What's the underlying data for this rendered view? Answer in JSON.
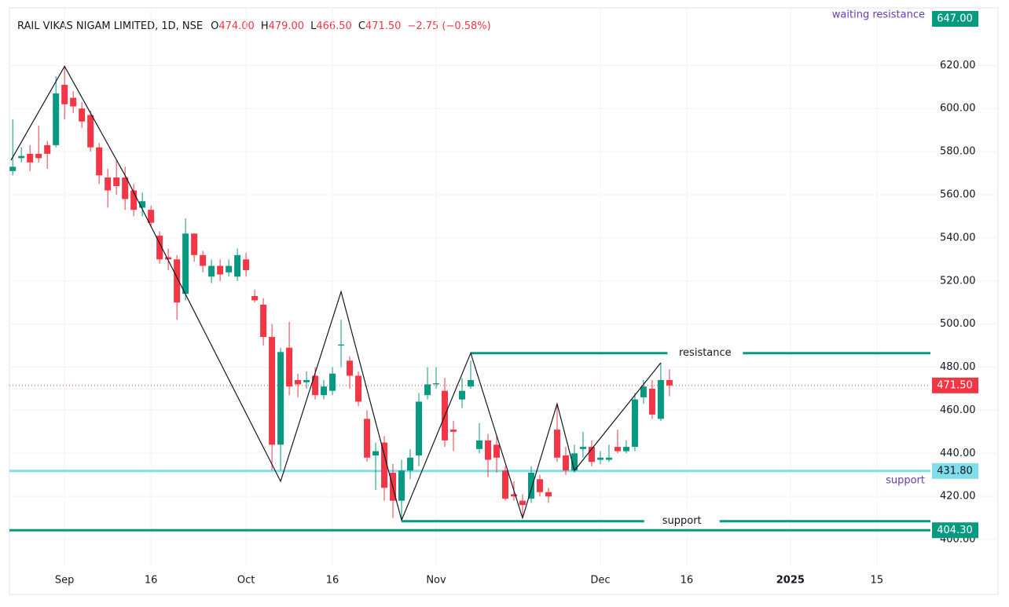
{
  "chart_data": {
    "type": "candlestick",
    "title": "RAIL VIKAS NIGAM LIMITED, 1D, NSE",
    "ohlc_legend": [
      {
        "key": "O",
        "value": "474.00"
      },
      {
        "key": "H",
        "value": "479.00"
      },
      {
        "key": "L",
        "value": "466.50"
      },
      {
        "key": "C",
        "value": "471.50"
      }
    ],
    "change": "−2.75 (−0.58%)",
    "up_color": "#089981",
    "down_color": "#f23645",
    "open": [
      571,
      577,
      579,
      579,
      583,
      583,
      611,
      605,
      600,
      597,
      582,
      568,
      568,
      568,
      562,
      554,
      553,
      541,
      531,
      530,
      514,
      542,
      532,
      522,
      527,
      524,
      522,
      530,
      513,
      509,
      494,
      444,
      489,
      474,
      473,
      476,
      467,
      469,
      490,
      483,
      476,
      456,
      439,
      445,
      431,
      418,
      432,
      439,
      467,
      472,
      469,
      451,
      465,
      471,
      442,
      446,
      444,
      432,
      421,
      418,
      419,
      428,
      422,
      451,
      439,
      432,
      442,
      443,
      437,
      437,
      443,
      441,
      443,
      466,
      470,
      456,
      474
    ],
    "high": [
      595,
      582,
      583,
      592,
      585,
      615,
      620,
      608,
      603,
      599,
      584,
      572,
      576,
      573,
      565,
      561,
      555,
      543,
      535,
      532,
      549,
      542,
      534,
      530,
      530,
      530,
      535,
      533,
      516,
      512,
      500,
      489,
      501,
      477,
      478,
      480,
      474,
      480,
      502,
      485,
      478,
      460,
      445,
      448,
      435,
      437,
      442,
      468,
      480,
      480,
      475,
      455,
      475,
      483,
      454,
      449,
      448,
      434,
      427,
      421,
      434,
      430,
      424,
      463,
      443,
      444,
      450,
      446,
      441,
      444,
      451,
      446,
      468,
      474,
      474,
      482,
      479
    ],
    "low": [
      569,
      575,
      571,
      575,
      572,
      582,
      595,
      598,
      591,
      580,
      565,
      554,
      560,
      553,
      550,
      550,
      545,
      528,
      525,
      502,
      511,
      529,
      524,
      519,
      520,
      522,
      520,
      522,
      510,
      490,
      432,
      432,
      467,
      466,
      470,
      465,
      465,
      467,
      480,
      470,
      462,
      436,
      423,
      418,
      410,
      409,
      428,
      434,
      465,
      470,
      443,
      441,
      461,
      470,
      440,
      429,
      431,
      418,
      418,
      410,
      417,
      420,
      417,
      436,
      430,
      431,
      438,
      434,
      435,
      436,
      440,
      440,
      441,
      463,
      456,
      455,
      466.5
    ],
    "close": [
      573,
      578,
      575,
      577,
      579,
      607,
      602,
      601,
      594,
      582,
      569,
      562,
      564,
      558,
      553,
      557,
      547,
      530,
      530,
      510,
      542,
      532,
      527,
      527,
      523,
      527,
      532,
      525,
      511,
      494,
      444,
      487,
      471,
      472,
      474,
      467,
      471,
      477,
      490.5,
      476,
      464,
      438,
      441,
      424,
      418,
      432,
      438,
      464,
      472,
      472.5,
      446,
      450,
      469,
      474,
      446,
      437,
      438,
      419,
      420,
      416,
      431,
      422,
      420,
      438,
      432,
      440,
      443,
      436,
      438,
      438,
      441,
      443,
      465,
      471,
      458,
      474,
      471.5
    ],
    "xlim": [
      -0.2,
      106.2
    ],
    "xticks": [
      {
        "value": 6,
        "label": "Sep"
      },
      {
        "value": 16,
        "label": "16"
      },
      {
        "value": 27,
        "label": "Oct"
      },
      {
        "value": 37,
        "label": "16"
      },
      {
        "value": 49,
        "label": "Nov"
      },
      {
        "value": 68,
        "label": "Dec"
      },
      {
        "value": 78,
        "label": "16"
      },
      {
        "value": 90,
        "label": "2025"
      },
      {
        "value": 100,
        "label": "15"
      }
    ],
    "ylim": [
      388,
      646
    ],
    "yticks": [
      {
        "value": 400,
        "label": "400.00"
      },
      {
        "value": 420,
        "label": "420.00"
      },
      {
        "value": 440,
        "label": "440.00"
      },
      {
        "value": 460,
        "label": "460.00"
      },
      {
        "value": 480,
        "label": "480.00"
      },
      {
        "value": 500,
        "label": "500.00"
      },
      {
        "value": 520,
        "label": "520.00"
      },
      {
        "value": 540,
        "label": "540.00"
      },
      {
        "value": 560,
        "label": "560.00"
      },
      {
        "value": 580,
        "label": "580.00"
      },
      {
        "value": 600,
        "label": "600.00"
      },
      {
        "value": 620,
        "label": "620.00"
      }
    ],
    "grid": true,
    "last_price": {
      "value": 471.5,
      "label": "471.50"
    },
    "zigzag": {
      "x": [
        -0.2,
        6,
        13,
        31,
        38,
        45,
        53,
        59,
        63,
        65,
        75
      ],
      "y": [
        576,
        619.6,
        569,
        427,
        515,
        409,
        486.5,
        410,
        463,
        432,
        482
      ]
    },
    "trend_levels": [
      {
        "value": 486.5,
        "start": 53,
        "text": "resistance"
      },
      {
        "value": 408.5,
        "start": 45,
        "text": "support"
      }
    ],
    "price_lines": [
      {
        "value": 647,
        "label": "647.00",
        "text": "waiting resistance",
        "color": "#089981"
      },
      {
        "value": 431.8,
        "label": "431.80",
        "text": "support",
        "color": "#80deea"
      },
      {
        "value": 404.3,
        "label": "404.30",
        "color": "#089981"
      }
    ]
  }
}
